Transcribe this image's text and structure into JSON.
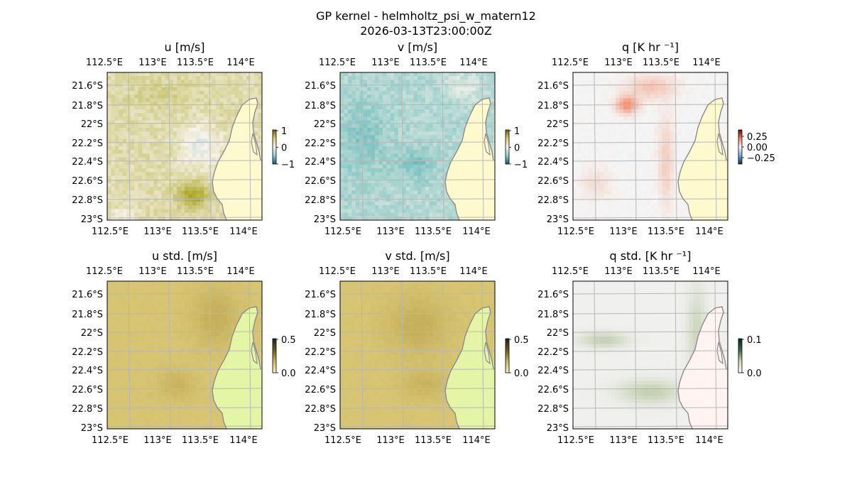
{
  "figure": {
    "title_line1": "GP kernel - helmholtz_psi_w_matern12",
    "title_line2": "2026-03-13T23:00:00Z"
  },
  "colors": {
    "ocean": "#a3b4d6",
    "land_u": "#fffacd",
    "land_std": "#e4f5a6",
    "land_q_std": "#fff4f1",
    "coast": "#8c8c8c",
    "grid": "#b7b7b7"
  },
  "chart_data": [
    {
      "type": "heatmap",
      "title": "u [m/s]",
      "x_ticks": [
        "112.5°E",
        "113°E",
        "113.5°E",
        "114°E"
      ],
      "y_ticks": [
        "21.6°S",
        "21.8°S",
        "22°S",
        "22.2°S",
        "22.4°S",
        "22.6°S",
        "22.8°S",
        "23°S"
      ],
      "colorbar": {
        "ticks": [
          "1",
          "0",
          "−1"
        ],
        "range": [
          -1,
          1
        ],
        "colormap": "diverging teal-white-olive"
      },
      "base_color": "#ecdfa6",
      "field": "u"
    },
    {
      "type": "heatmap",
      "title": "v [m/s]",
      "x_ticks": [
        "112.5°E",
        "113°E",
        "113.5°E",
        "114°E"
      ],
      "y_ticks": [
        "21.6°S",
        "21.8°S",
        "22°S",
        "22.2°S",
        "22.4°S",
        "22.6°S",
        "22.8°S",
        "23°S"
      ],
      "colorbar": {
        "ticks": [
          "1",
          "0",
          "−1"
        ],
        "range": [
          -1,
          1
        ],
        "colormap": "diverging teal-white-olive"
      },
      "base_color": "#bcdfdc",
      "field": "v"
    },
    {
      "type": "heatmap",
      "title": "q [K hr ⁻¹]",
      "x_ticks": [
        "112.5°E",
        "113°E",
        "113.5°E",
        "114°E"
      ],
      "y_ticks": [
        "21.6°S",
        "21.8°S",
        "22°S",
        "22.2°S",
        "22.4°S",
        "22.6°S",
        "22.8°S",
        "23°S"
      ],
      "colorbar": {
        "ticks": [
          "0.25",
          "0.00",
          "−0.25"
        ],
        "range": [
          -0.35,
          0.35
        ],
        "colormap": "diverging blue-white-red"
      },
      "base_color": "#f1f3f6",
      "field": "q"
    },
    {
      "type": "heatmap",
      "title": "u std. [m/s]",
      "x_ticks": [
        "112.5°E",
        "113°E",
        "113.5°E",
        "114°E"
      ],
      "y_ticks": [
        "21.6°S",
        "21.8°S",
        "22°S",
        "22.2°S",
        "22.4°S",
        "22.6°S",
        "22.8°S",
        "23°S"
      ],
      "colorbar": {
        "ticks": [
          "0.5",
          "0.0"
        ],
        "range": [
          0,
          0.5
        ],
        "colormap": "sequential dark-olive-yellow"
      },
      "base_color": "#cdb760",
      "field": "u_std"
    },
    {
      "type": "heatmap",
      "title": "v std. [m/s]",
      "x_ticks": [
        "112.5°E",
        "113°E",
        "113.5°E",
        "114°E"
      ],
      "y_ticks": [
        "21.6°S",
        "21.8°S",
        "22°S",
        "22.2°S",
        "22.4°S",
        "22.6°S",
        "22.8°S",
        "23°S"
      ],
      "colorbar": {
        "ticks": [
          "0.5",
          "0.0"
        ],
        "range": [
          0,
          0.5
        ],
        "colormap": "sequential dark-olive-yellow"
      },
      "base_color": "#ceb95f",
      "field": "v_std"
    },
    {
      "type": "heatmap",
      "title": "q std. [K hr ⁻¹]",
      "x_ticks": [
        "112.5°E",
        "113°E",
        "113.5°E",
        "114°E"
      ],
      "y_ticks": [
        "21.6°S",
        "21.8°S",
        "22°S",
        "22.2°S",
        "22.4°S",
        "22.6°S",
        "22.8°S",
        "23°S"
      ],
      "colorbar": {
        "ticks": [
          "0.1",
          "0.0"
        ],
        "range": [
          0,
          0.1
        ],
        "colormap": "sequential dark-green-white"
      },
      "base_color": "#eeeee6",
      "field": "q_std"
    }
  ]
}
